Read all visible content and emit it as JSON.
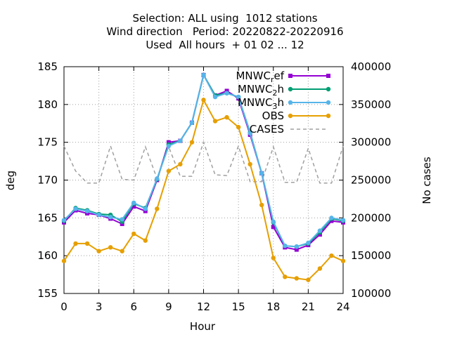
{
  "titles": [
    "Selection: ALL using  1012 stations",
    "Wind direction   Period: 20220822-20220916",
    "Used  All hours  + 01 02 ... 12"
  ],
  "chart_data": {
    "type": "line",
    "xlabel": "Hour",
    "ylabel": "deg",
    "y2label": "No cases",
    "xlim": [
      0,
      24
    ],
    "ylim": [
      155,
      185
    ],
    "y2lim": [
      100000,
      400000
    ],
    "xticks": [
      "0",
      "3",
      "6",
      "9",
      "12",
      "15",
      "18",
      "21",
      "24"
    ],
    "yticks": [
      "155",
      "160",
      "165",
      "170",
      "175",
      "180",
      "185"
    ],
    "y2ticks": [
      "100000",
      "150000",
      "200000",
      "250000",
      "300000",
      "350000",
      "400000"
    ],
    "grid": true,
    "legend_position": "top-right",
    "x": [
      0,
      1,
      2,
      3,
      4,
      5,
      6,
      7,
      8,
      9,
      10,
      11,
      12,
      13,
      14,
      15,
      16,
      17,
      18,
      19,
      20,
      21,
      22,
      23,
      24
    ],
    "series": [
      {
        "name": "MNWC_ref",
        "name_main": "MNWC",
        "name_sub": "r",
        "name_tail": "ef",
        "color": "#9400d3",
        "axis": "y1",
        "marker": "square",
        "values": [
          164.4,
          166.0,
          165.6,
          165.4,
          164.9,
          164.2,
          166.5,
          165.9,
          170.0,
          175.0,
          175.2,
          177.6,
          183.9,
          181.2,
          181.8,
          180.8,
          176.0,
          170.9,
          163.8,
          161.1,
          160.8,
          161.4,
          162.8,
          164.6,
          164.4
        ]
      },
      {
        "name": "MNWC_2h",
        "name_main": "MNWC",
        "name_sub": "2",
        "name_tail": "h",
        "color": "#009e73",
        "axis": "y1",
        "marker": "circle",
        "values": [
          164.6,
          166.3,
          166.0,
          165.5,
          165.4,
          164.5,
          166.9,
          166.3,
          170.1,
          174.7,
          175.2,
          177.6,
          183.9,
          181.2,
          181.5,
          181.0,
          176.3,
          170.9,
          164.4,
          161.3,
          161.2,
          161.6,
          163.1,
          164.9,
          164.6
        ]
      },
      {
        "name": "MNWC_3h",
        "name_main": "MNWC",
        "name_sub": "3",
        "name_tail": "h",
        "color": "#56b4e9",
        "axis": "y1",
        "marker": "circle",
        "values": [
          164.7,
          166.2,
          165.9,
          165.4,
          165.1,
          164.8,
          167.0,
          166.2,
          170.2,
          174.5,
          175.2,
          177.6,
          183.9,
          181.0,
          181.5,
          181.0,
          176.2,
          170.9,
          164.5,
          161.3,
          161.2,
          161.7,
          163.3,
          165.0,
          164.7
        ]
      },
      {
        "name": "OBS",
        "name_main": "OBS",
        "name_sub": "",
        "name_tail": "",
        "color": "#e69f00",
        "axis": "y1",
        "marker": "circle",
        "values": [
          159.3,
          161.6,
          161.6,
          160.6,
          161.1,
          160.6,
          162.9,
          162.0,
          166.2,
          171.2,
          172.1,
          175.0,
          180.6,
          177.8,
          178.3,
          177.0,
          172.1,
          166.7,
          159.7,
          157.2,
          157.0,
          156.8,
          158.3,
          160.0,
          159.3
        ]
      },
      {
        "name": "CASES",
        "name_main": "CASES",
        "name_sub": "",
        "name_tail": "",
        "color": "#a0a0a0",
        "axis": "y2",
        "marker": "none",
        "dashed": true,
        "values": [
          295000,
          262000,
          246000,
          246000,
          295000,
          251000,
          250000,
          294000,
          252000,
          294000,
          255000,
          255000,
          300000,
          257000,
          256000,
          295000,
          248000,
          248000,
          294000,
          247000,
          247000,
          292000,
          246000,
          246000,
          295000
        ]
      }
    ]
  }
}
